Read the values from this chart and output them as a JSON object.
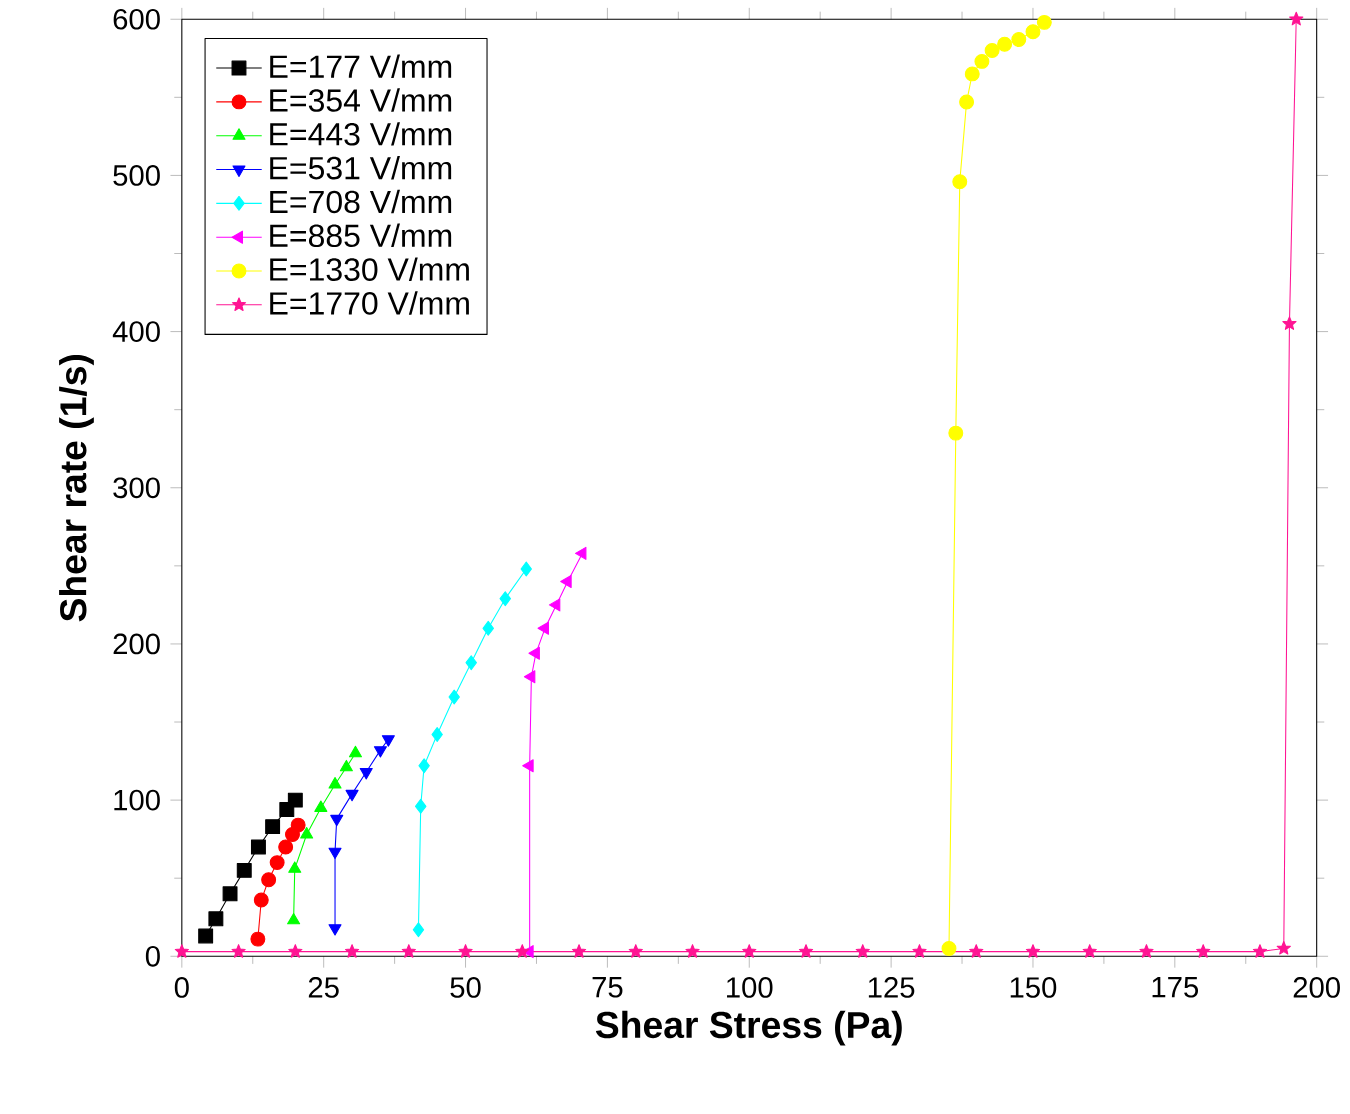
{
  "chart_data": {
    "type": "line",
    "xlabel": "Shear Stress (Pa)",
    "ylabel": "Shear rate (1/s)",
    "xlim": [
      0,
      200
    ],
    "ylim": [
      0,
      600
    ],
    "xticks": [
      0,
      25,
      50,
      75,
      100,
      125,
      150,
      175,
      200
    ],
    "yticks": [
      0,
      100,
      200,
      300,
      400,
      500,
      600
    ],
    "legend": "top left",
    "grid": false,
    "line_style": "solid",
    "series": [
      {
        "name": "E=177  V/mm",
        "color": "#000000",
        "marker": "square",
        "x": [
          4.2,
          6,
          8.5,
          11,
          13.5,
          16,
          18.5,
          20
        ],
        "values": [
          13,
          24,
          40,
          55,
          70,
          83,
          94,
          100
        ]
      },
      {
        "name": "E=354  V/mm",
        "color": "#ff0000",
        "marker": "circle",
        "x": [
          13.4,
          14,
          15.3,
          16.8,
          18.3,
          19.5,
          20.5
        ],
        "values": [
          11,
          36,
          49,
          60,
          70,
          78,
          84
        ]
      },
      {
        "name": "E=443  V/mm",
        "color": "#00ff00",
        "marker": "triangle",
        "x": [
          19.7,
          19.9,
          22,
          24.5,
          27,
          29,
          30.6
        ],
        "values": [
          23,
          56,
          78,
          95,
          110,
          121,
          130
        ]
      },
      {
        "name": "E=531  V/mm",
        "color": "#0000ff",
        "marker": "triangle-down",
        "x": [
          27,
          27,
          27.3,
          30,
          32.5,
          35,
          36.4
        ],
        "values": [
          18,
          67,
          88,
          104,
          118,
          132,
          139
        ]
      },
      {
        "name": "E=708  V/mm",
        "color": "#00ffff",
        "marker": "diamond",
        "x": [
          41.7,
          42.1,
          42.7,
          45,
          48,
          51,
          54,
          57,
          60.7
        ],
        "values": [
          17,
          96,
          122,
          142,
          166,
          188,
          210,
          229,
          248
        ]
      },
      {
        "name": "E=885  V/mm",
        "color": "#ff00ff",
        "marker": "triangle-left",
        "x": [
          61.3,
          61.3,
          61.6,
          62.4,
          64,
          66,
          68,
          70.6
        ],
        "values": [
          3,
          122,
          179,
          194,
          210,
          225,
          240,
          258
        ]
      },
      {
        "name": "E=1330 V/mm",
        "color": "#ffff00",
        "marker": "circle",
        "x": [
          135.2,
          136.4,
          137.1,
          138.3,
          139.3,
          141,
          142.8,
          145,
          147.5,
          150,
          152
        ],
        "values": [
          5,
          335,
          496,
          547,
          565,
          573,
          580,
          584,
          587,
          592,
          598
        ]
      },
      {
        "name": "E=1770 V/mm",
        "color": "#ff1493",
        "marker": "star",
        "x": [
          0,
          10,
          20,
          30,
          40,
          50,
          60,
          70,
          80,
          90,
          100,
          110,
          120,
          130,
          140,
          150,
          160,
          170,
          180,
          190,
          194.2,
          195.2,
          196.4
        ],
        "values": [
          3,
          3,
          3,
          3,
          3,
          3,
          3,
          3,
          3,
          3,
          3,
          3,
          3,
          3,
          3,
          3,
          3,
          3,
          3,
          3,
          5,
          405,
          600
        ]
      }
    ]
  }
}
